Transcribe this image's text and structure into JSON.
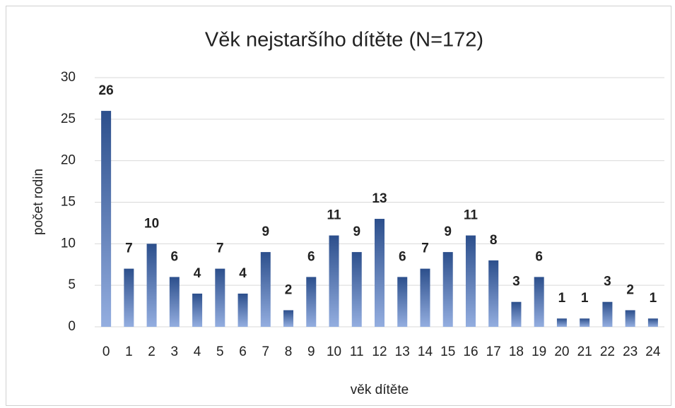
{
  "chart_data": {
    "type": "bar",
    "title": "Věk nejstaršího dítěte (N=172)",
    "x_label": "věk dítěte",
    "y_label": "počet rodin",
    "categories": [
      "0",
      "1",
      "2",
      "3",
      "4",
      "5",
      "6",
      "7",
      "8",
      "9",
      "10",
      "11",
      "12",
      "13",
      "14",
      "15",
      "16",
      "17",
      "18",
      "19",
      "20",
      "21",
      "22",
      "23",
      "24"
    ],
    "values": [
      26,
      7,
      10,
      6,
      4,
      7,
      4,
      9,
      2,
      6,
      11,
      9,
      13,
      6,
      7,
      9,
      11,
      8,
      3,
      6,
      1,
      1,
      3,
      2,
      1
    ],
    "color": "#2c4f8c",
    "ylim": [
      0,
      30
    ],
    "yticks": [
      0,
      5,
      10,
      15,
      20,
      25,
      30
    ],
    "grid": true
  }
}
